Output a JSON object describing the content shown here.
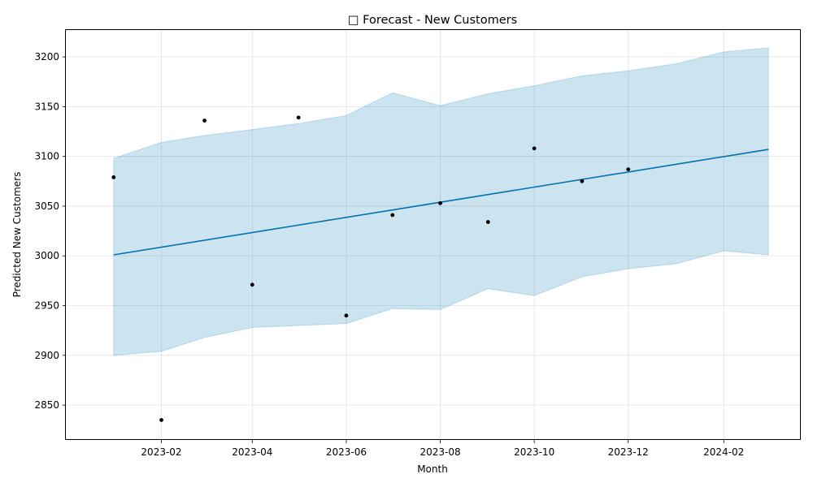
{
  "chart_data": {
    "type": "line",
    "title": "□ Forecast - New Customers",
    "xlabel": "Month",
    "ylabel": "Predicted New Customers",
    "x_range": [
      "2022-12-01",
      "2024-03-22"
    ],
    "ylim": [
      2815,
      3227
    ],
    "grid": true,
    "x_ticks": [
      "2023-02",
      "2023-04",
      "2023-06",
      "2023-08",
      "2023-10",
      "2023-12",
      "2024-02"
    ],
    "y_ticks": [
      2850,
      2900,
      2950,
      3000,
      3050,
      3100,
      3150,
      3200
    ],
    "series": [
      {
        "kind": "observed-points",
        "color": "#000000",
        "points": [
          {
            "x": "2023-01-01",
            "y": 3079
          },
          {
            "x": "2023-02-01",
            "y": 2835
          },
          {
            "x": "2023-03-01",
            "y": 3136
          },
          {
            "x": "2023-04-01",
            "y": 2971
          },
          {
            "x": "2023-05-01",
            "y": 3139
          },
          {
            "x": "2023-06-01",
            "y": 2940
          },
          {
            "x": "2023-07-01",
            "y": 3041
          },
          {
            "x": "2023-08-01",
            "y": 3053
          },
          {
            "x": "2023-09-01",
            "y": 3034
          },
          {
            "x": "2023-10-01",
            "y": 3108
          },
          {
            "x": "2023-11-01",
            "y": 3075
          },
          {
            "x": "2023-12-01",
            "y": 3087
          }
        ]
      },
      {
        "kind": "forecast-line",
        "color": "#0072b2",
        "points": [
          {
            "x": "2023-01-01",
            "y": 3001
          },
          {
            "x": "2024-03-01",
            "y": 3107
          }
        ]
      },
      {
        "kind": "uncertainty-band",
        "color": "#0072b2",
        "opacity": 0.2,
        "points": [
          {
            "x": "2023-01-01",
            "lower": 2900,
            "upper": 3098
          },
          {
            "x": "2023-02-01",
            "lower": 2904,
            "upper": 3114
          },
          {
            "x": "2023-03-01",
            "lower": 2918,
            "upper": 3121
          },
          {
            "x": "2023-04-01",
            "lower": 2928,
            "upper": 3127
          },
          {
            "x": "2023-05-01",
            "lower": 2930,
            "upper": 3133
          },
          {
            "x": "2023-06-01",
            "lower": 2932,
            "upper": 3141
          },
          {
            "x": "2023-07-01",
            "lower": 2947,
            "upper": 3164
          },
          {
            "x": "2023-08-01",
            "lower": 2946,
            "upper": 3151
          },
          {
            "x": "2023-09-01",
            "lower": 2967,
            "upper": 3163
          },
          {
            "x": "2023-10-01",
            "lower": 2960,
            "upper": 3171
          },
          {
            "x": "2023-11-01",
            "lower": 2979,
            "upper": 3181
          },
          {
            "x": "2023-12-01",
            "lower": 2987,
            "upper": 3186
          },
          {
            "x": "2024-01-01",
            "lower": 2992,
            "upper": 3193
          },
          {
            "x": "2024-02-01",
            "lower": 3005,
            "upper": 3205
          },
          {
            "x": "2024-03-01",
            "lower": 3001,
            "upper": 3209
          }
        ]
      }
    ]
  }
}
